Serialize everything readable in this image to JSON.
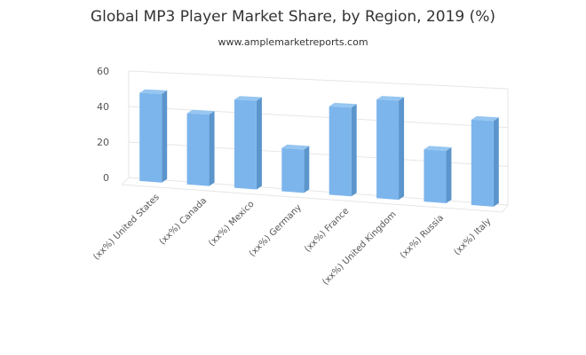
{
  "chart_data": {
    "type": "bar",
    "title": "Global MP3 Player Market Share, by Region, 2019 (%)",
    "subtitle": "www.amplemarketreports.com",
    "xlabel": "",
    "ylabel": "",
    "ylim": [
      0,
      60
    ],
    "yticks": [
      0,
      20,
      40,
      60
    ],
    "grid": true,
    "legend": "none",
    "categories": [
      "(xx%) United States",
      "(xx%) Canada",
      "(xx%) Mexico",
      "(xx%) Germany",
      "(xx%) France",
      "(xx%) United Kingdom",
      "(xx%) Russia",
      "(xx%) Italy"
    ],
    "values": [
      48,
      38,
      47,
      22,
      46,
      51,
      26,
      43
    ],
    "colors": {
      "bar_front": "#7cb5ec",
      "bar_side": "#5b95cc",
      "bar_top": "#96c6f1",
      "grid": "#e6e6e6"
    }
  }
}
